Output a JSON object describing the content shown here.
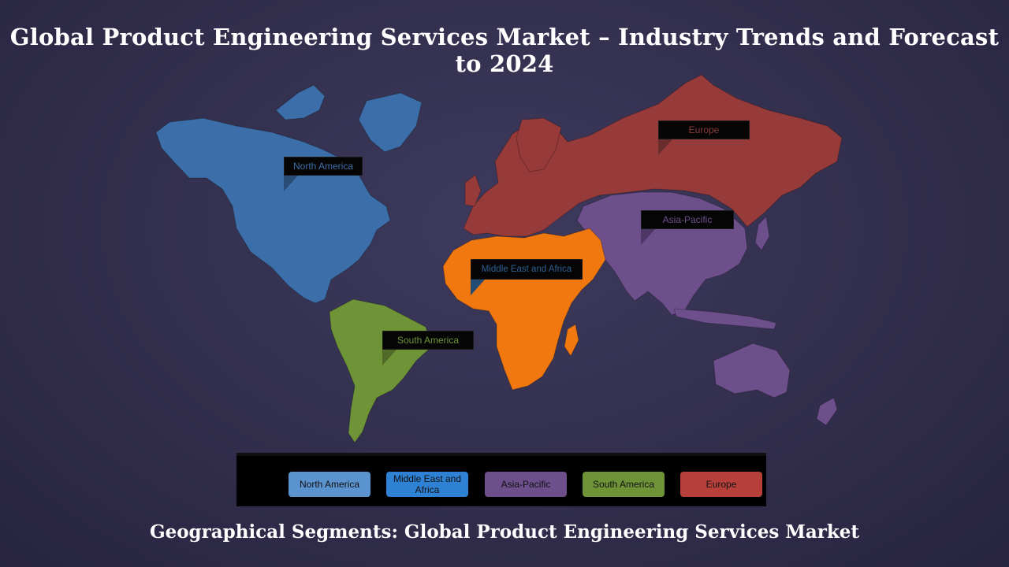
{
  "title": "Global Product Engineering Services Market – Industry Trends and Forecast to 2024",
  "subtitle": "Geographical Segments: Global Product Engineering Services Market",
  "colors": {
    "north_america": "#3c6fa9",
    "south_america": "#6f9438",
    "europe": "#963a3a",
    "middle_east_africa": "#f0780e",
    "asia_pacific": "#6d4f8c"
  },
  "callouts": {
    "north_america": "North America",
    "europe": "Europe",
    "asia_pacific": "Asia-Pacific",
    "middle_east_africa": "Middle East and Africa",
    "south_america": "South America"
  },
  "legend": [
    {
      "label": "North America",
      "color": "#5b93cf"
    },
    {
      "label": "Middle East and Africa",
      "color": "#2e81d3"
    },
    {
      "label": "Asia-Pacific",
      "color": "#6d4f8c"
    },
    {
      "label": "South America",
      "color": "#6f9438"
    },
    {
      "label": "Europe",
      "color": "#b7403a"
    }
  ]
}
